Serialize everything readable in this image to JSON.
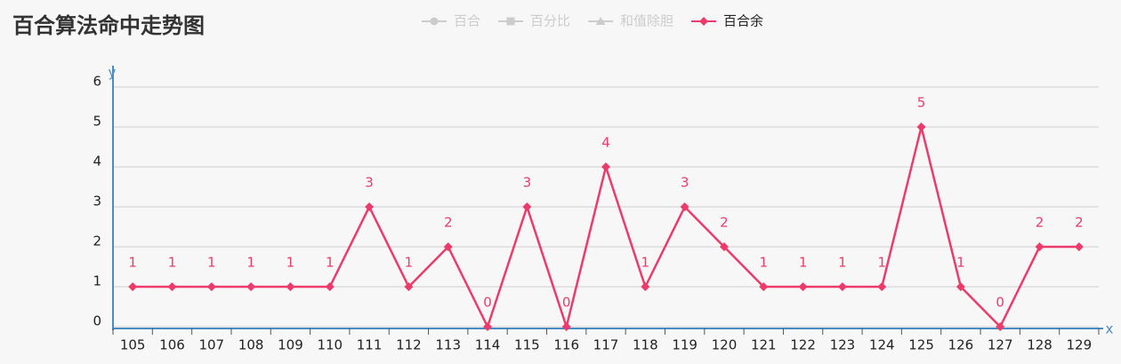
{
  "chart_data": {
    "type": "line",
    "title": "百合算法命中走势图",
    "x_label": "x",
    "y_label": "y",
    "categories": [
      "105",
      "106",
      "107",
      "108",
      "109",
      "110",
      "111",
      "112",
      "113",
      "114",
      "115",
      "116",
      "117",
      "118",
      "119",
      "120",
      "121",
      "122",
      "123",
      "124",
      "125",
      "126",
      "127",
      "128",
      "129"
    ],
    "series": [
      {
        "name": "百合",
        "color": "#cccccc",
        "marker": "circle",
        "visible": false
      },
      {
        "name": "百分比",
        "color": "#cccccc",
        "marker": "square",
        "visible": false
      },
      {
        "name": "和值除胆",
        "color": "#cccccc",
        "marker": "triangle",
        "visible": false
      },
      {
        "name": "百合余",
        "color": "#ec3b6b",
        "marker": "diamond",
        "visible": true,
        "values": [
          1,
          1,
          1,
          1,
          1,
          1,
          3,
          1,
          2,
          0,
          3,
          0,
          4,
          1,
          3,
          2,
          1,
          1,
          1,
          1,
          5,
          1,
          0,
          2,
          2
        ]
      }
    ],
    "ylim": [
      0,
      6
    ],
    "yticks": [
      0,
      1,
      2,
      3,
      4,
      5,
      6
    ],
    "grid": true,
    "legend": "top"
  }
}
